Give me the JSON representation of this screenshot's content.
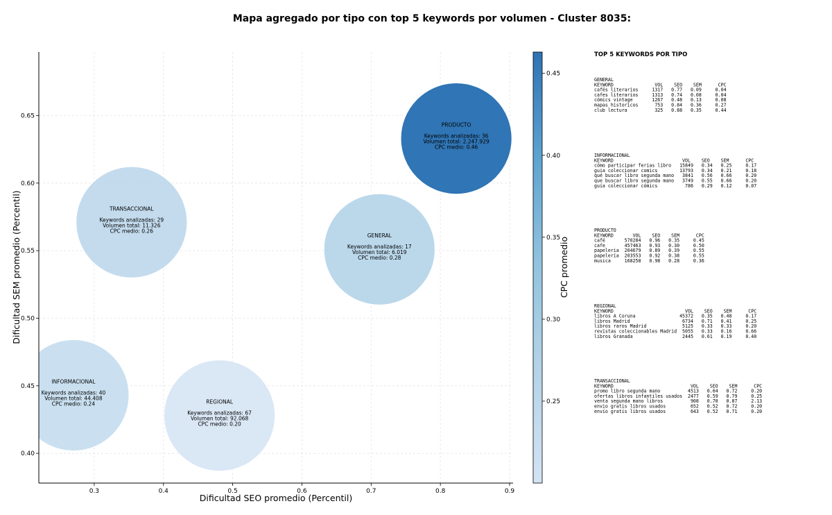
{
  "chart_data": {
    "type": "scatter",
    "title": "Mapa agregado por tipo con top 5 keywords por volumen - Cluster 8035:",
    "xlabel": "Dificultad SEO promedio (Percentil)",
    "ylabel": "Dificultad SEM promedio (Percentil)",
    "xlim": [
      0.22,
      0.905
    ],
    "ylim": [
      0.378,
      0.697
    ],
    "xticks": [
      0.3,
      0.4,
      0.5,
      0.6,
      0.7,
      0.8,
      0.9
    ],
    "yticks": [
      0.4,
      0.45,
      0.5,
      0.55,
      0.6,
      0.65
    ],
    "xtick_labels": [
      "0.3",
      "0.4",
      "0.5",
      "0.6",
      "0.7",
      "0.8",
      "0.9"
    ],
    "ytick_labels": [
      "0.40",
      "0.45",
      "0.50",
      "0.55",
      "0.60",
      "0.65"
    ],
    "grid": true,
    "colorbar": {
      "label": "CPC promedio",
      "range": [
        0.2,
        0.463
      ],
      "ticks": [
        0.25,
        0.3,
        0.35,
        0.4,
        0.45
      ],
      "tick_labels": [
        "0.25",
        "0.30",
        "0.35",
        "0.40",
        "0.45"
      ]
    },
    "points": [
      {
        "name": "PRODUCTO",
        "x": 0.823,
        "y": 0.633,
        "cpc": 0.46,
        "keywords": 36,
        "volume": 2247929,
        "lines": [
          "PRODUCTO",
          "Keywords analizadas: 36",
          "Volumen total: 2.247.929",
          "CPC medio: 0.46"
        ]
      },
      {
        "name": "TRANSACCIONAL",
        "x": 0.354,
        "y": 0.571,
        "cpc": 0.26,
        "keywords": 29,
        "volume": 11326,
        "lines": [
          "TRANSACCIONAL",
          "Keywords analizadas: 29",
          "Volumen total: 11.326",
          "CPC medio: 0.26"
        ]
      },
      {
        "name": "GENERAL",
        "x": 0.712,
        "y": 0.551,
        "cpc": 0.28,
        "keywords": 17,
        "volume": 6019,
        "lines": [
          "GENERAL",
          "Keywords analizadas: 17",
          "Volumen total: 6.019",
          "CPC medio: 0.28"
        ]
      },
      {
        "name": "INFORMACIONAL",
        "x": 0.27,
        "y": 0.443,
        "cpc": 0.24,
        "keywords": 40,
        "volume": 44408,
        "lines": [
          "INFORMACIONAL",
          "Keywords analizadas: 40",
          "Volumen total: 44.408",
          "CPC medio: 0.24"
        ]
      },
      {
        "name": "REGIONAL",
        "x": 0.481,
        "y": 0.428,
        "cpc": 0.2,
        "keywords": 67,
        "volume": 92068,
        "lines": [
          "REGIONAL",
          "Keywords analizadas: 67",
          "Volumen total: 92.068",
          "CPC medio: 0.20"
        ]
      }
    ]
  },
  "panel": {
    "title": "TOP 5 KEYWORDS POR TIPO",
    "groups": [
      {
        "name": "GENERAL",
        "lines": [
          "KEYWORD               VOL    SEO    SEM      CPC",
          "cafés literarios     1317   0.77   0.09     0.04",
          "cafes literarios     1313   0.74   0.08     0.04",
          "cómics vintage       1267   0.48   0.13     0.08",
          "mapas historicos      753   0.84   0.36     0.27",
          "club lectura          325   0.88   0.35     0.44"
        ]
      },
      {
        "name": "INFORMACIONAL",
        "lines": [
          "KEYWORD                         VOL    SEO    SEM      CPC",
          "cómo participar ferias libro   15849   0.34   0.25     0.17",
          "guia coleccionar comics        13793   0.34   0.21     0.18",
          "qué buscar libro segunda mano   3841   0.56   0.66     0.20",
          "que buscar libro segunda mano   3749   0.55   0.66     0.20",
          "guía coleccionar cómics          786   0.29   0.12     0.07"
        ]
      },
      {
        "name": "PRODUCTO",
        "lines": [
          "KEYWORD       VOL    SEO    SEM      CPC",
          "café       570284   0.96   0.35     0.45",
          "cafe       457463   0.93   0.30     0.50",
          "papeleria  204679   0.89   0.39     0.55",
          "papelería  203553   0.92   0.38     0.55",
          "musica     168258   0.98   0.28     0.36"
        ]
      },
      {
        "name": "REGIONAL",
        "lines": [
          "KEYWORD                          VOL    SEO    SEM      CPC",
          "libros A Coruna                45372   0.35   0.48     0.17",
          "libros Madrid                   6734   0.71   0.41     0.25",
          "libros raros Madrid             5125   0.33   0.33     0.20",
          "revistas coleccionables Madrid  5055   0.33   0.16     0.66",
          "libros Granada                  2445   0.61   0.19     0.40"
        ]
      },
      {
        "name": "TRANSACCIONAL",
        "lines": [
          "KEYWORD                            VOL    SEO    SEM      CPC",
          "promo libro segunda mano          4513   0.64   0.72     0.20",
          "ofertas libros infantiles usados  2477   0.59   0.79     0.25",
          "venta segunda mano libros          908   0.70   0.87     2.13",
          "envio gratis libros usados         652   0.52   0.72     0.20",
          "envío gratis libros usados         643   0.52   0.71     0.20"
        ]
      }
    ]
  }
}
